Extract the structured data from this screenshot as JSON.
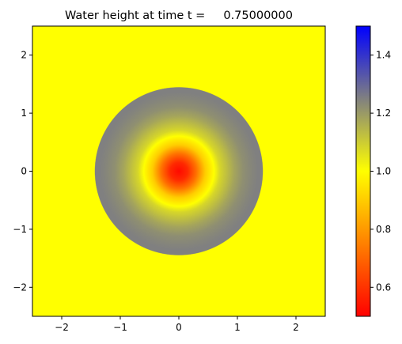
{
  "chart_data": {
    "type": "heatmap",
    "title": "Water height at time t =     0.75000000",
    "xlabel": "",
    "ylabel": "",
    "xlim": [
      -2.5,
      2.5
    ],
    "ylim": [
      -2.5,
      2.5
    ],
    "x_ticks": [
      -2,
      -1,
      0,
      1,
      2
    ],
    "y_ticks": [
      -2,
      -1,
      0,
      1,
      2
    ],
    "x_tick_labels": [
      "−2",
      "−1",
      "0",
      "1",
      "2"
    ],
    "y_tick_labels": [
      "−2",
      "−1",
      "0",
      "1",
      "2"
    ],
    "grid": false,
    "field": {
      "description_values": "radially symmetric water height h(r)",
      "background_value": 1.0,
      "radial_profile_r": [
        0.0,
        0.15,
        0.3,
        0.45,
        0.6,
        0.7,
        0.8,
        0.95,
        1.1,
        1.25,
        1.35,
        1.43,
        1.44
      ],
      "radial_profile_h": [
        0.52,
        0.58,
        0.72,
        0.9,
        1.0,
        1.08,
        1.12,
        1.18,
        1.22,
        1.24,
        1.25,
        1.25,
        1.0
      ]
    },
    "colorbar": {
      "vmin": 0.5,
      "vmax": 1.5,
      "ticks": [
        0.6,
        0.8,
        1.0,
        1.2,
        1.4
      ],
      "tick_labels": [
        "0.6",
        "0.8",
        "1.0",
        "1.2",
        "1.4"
      ],
      "colors": [
        {
          "value": 0.5,
          "color": "#ff0000"
        },
        {
          "value": 0.75,
          "color": "#ff8000"
        },
        {
          "value": 1.0,
          "color": "#ffff00"
        },
        {
          "value": 1.25,
          "color": "#808080"
        },
        {
          "value": 1.5,
          "color": "#0000ff"
        }
      ]
    }
  }
}
